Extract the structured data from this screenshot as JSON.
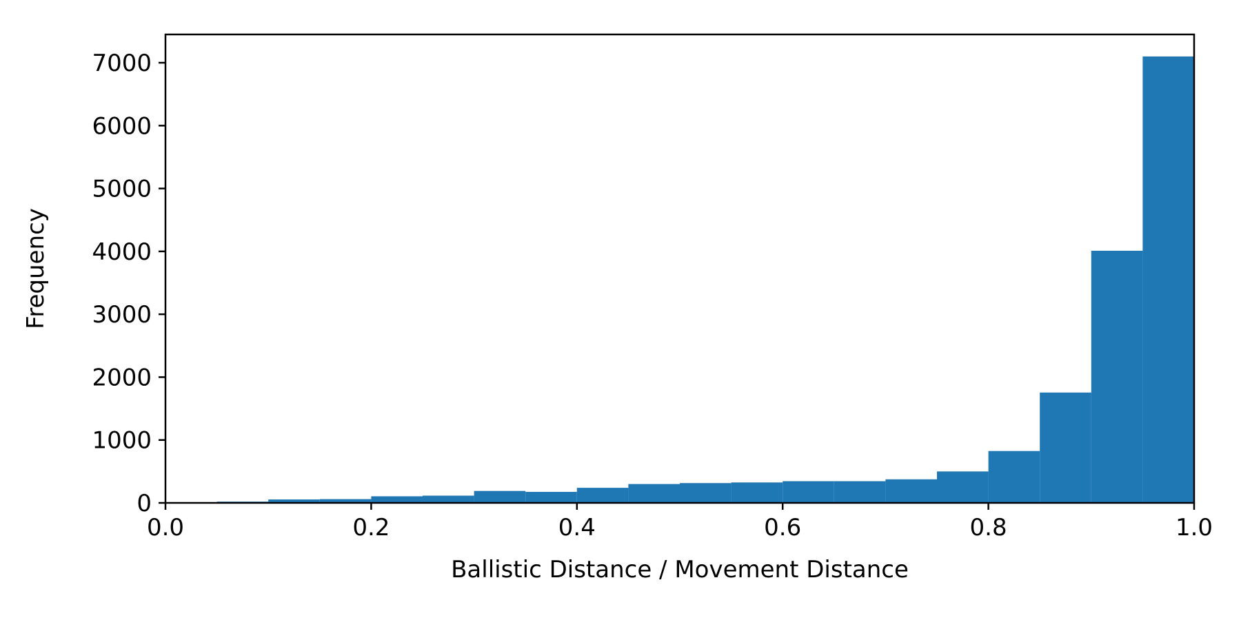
{
  "chart_data": {
    "type": "bar",
    "subtype": "histogram",
    "xlabel": "Ballistic Distance / Movement Distance",
    "ylabel": "Frequency",
    "xlim": [
      0.0,
      1.0
    ],
    "ylim": [
      0,
      7450
    ],
    "bin_width": 0.05,
    "bins": [
      {
        "x0": 0.0,
        "x1": 0.05,
        "value": 0
      },
      {
        "x0": 0.05,
        "x1": 0.1,
        "value": 20
      },
      {
        "x0": 0.1,
        "x1": 0.15,
        "value": 55
      },
      {
        "x0": 0.15,
        "x1": 0.2,
        "value": 60
      },
      {
        "x0": 0.2,
        "x1": 0.25,
        "value": 105
      },
      {
        "x0": 0.25,
        "x1": 0.3,
        "value": 115
      },
      {
        "x0": 0.3,
        "x1": 0.35,
        "value": 190
      },
      {
        "x0": 0.35,
        "x1": 0.4,
        "value": 175
      },
      {
        "x0": 0.4,
        "x1": 0.45,
        "value": 240
      },
      {
        "x0": 0.45,
        "x1": 0.5,
        "value": 300
      },
      {
        "x0": 0.5,
        "x1": 0.55,
        "value": 315
      },
      {
        "x0": 0.55,
        "x1": 0.6,
        "value": 325
      },
      {
        "x0": 0.6,
        "x1": 0.65,
        "value": 345
      },
      {
        "x0": 0.65,
        "x1": 0.7,
        "value": 345
      },
      {
        "x0": 0.7,
        "x1": 0.75,
        "value": 375
      },
      {
        "x0": 0.75,
        "x1": 0.8,
        "value": 500
      },
      {
        "x0": 0.8,
        "x1": 0.85,
        "value": 825
      },
      {
        "x0": 0.85,
        "x1": 0.9,
        "value": 1755
      },
      {
        "x0": 0.9,
        "x1": 0.95,
        "value": 4010
      },
      {
        "x0": 0.95,
        "x1": 1.0,
        "value": 7100
      }
    ],
    "x_ticks": [
      {
        "value": 0.0,
        "label": "0.0"
      },
      {
        "value": 0.2,
        "label": "0.2"
      },
      {
        "value": 0.4,
        "label": "0.4"
      },
      {
        "value": 0.6,
        "label": "0.6"
      },
      {
        "value": 0.8,
        "label": "0.8"
      },
      {
        "value": 1.0,
        "label": "1.0"
      }
    ],
    "y_ticks": [
      {
        "value": 0,
        "label": "0"
      },
      {
        "value": 1000,
        "label": "1000"
      },
      {
        "value": 2000,
        "label": "2000"
      },
      {
        "value": 3000,
        "label": "3000"
      },
      {
        "value": 4000,
        "label": "4000"
      },
      {
        "value": 5000,
        "label": "5000"
      },
      {
        "value": 6000,
        "label": "6000"
      },
      {
        "value": 7000,
        "label": "7000"
      }
    ],
    "bar_color": "#1f77b4",
    "grid": false,
    "legend": "none"
  }
}
